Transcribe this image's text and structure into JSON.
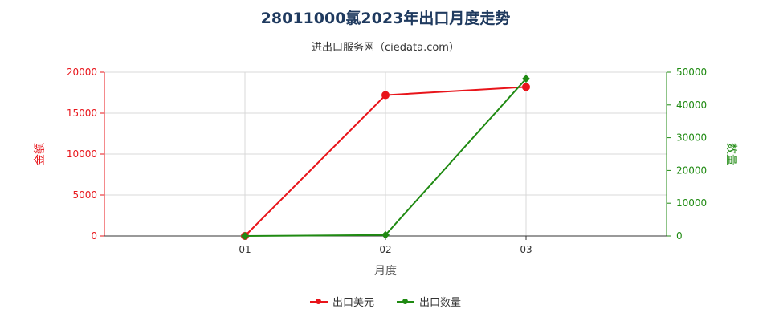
{
  "title": "28011000氯2023年出口月度走势",
  "subtitle": "进出口服务网（ciedata.com）",
  "chart_data": {
    "type": "line",
    "xlabel": "月度",
    "categories": [
      "01",
      "02",
      "03"
    ],
    "y_left": {
      "label": "金额",
      "range": [
        0,
        20000
      ],
      "ticks": [
        0,
        5000,
        10000,
        15000,
        20000
      ],
      "color": "#e8141a"
    },
    "y_right": {
      "label": "数量",
      "range": [
        0,
        50000
      ],
      "ticks": [
        0,
        10000,
        20000,
        30000,
        40000,
        50000
      ],
      "color": "#1f8a12"
    },
    "series": [
      {
        "name": "出口美元",
        "axis": "left",
        "color": "#e8141a",
        "marker": "circle",
        "values": [
          0,
          17200,
          18200
        ]
      },
      {
        "name": "出口数量",
        "axis": "right",
        "color": "#1f8a12",
        "marker": "diamond",
        "values": [
          0,
          300,
          48000
        ]
      }
    ],
    "grid": true,
    "legend_position": "bottom"
  }
}
